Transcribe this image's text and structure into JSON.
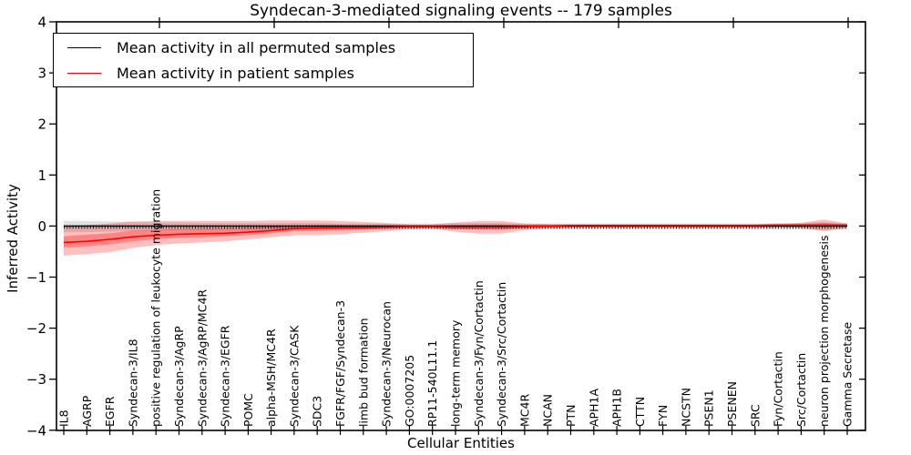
{
  "chart_data": {
    "type": "line",
    "title": "Syndecan-3-mediated signaling events -- 179 samples",
    "xlabel": "Cellular Entities",
    "ylabel": "Inferred Activity",
    "ylim": [
      -4,
      4
    ],
    "yticks": [
      4,
      3,
      2,
      1,
      0,
      -1,
      -2,
      -3,
      -4
    ],
    "ytick_labels": [
      "4",
      "3",
      "2",
      "1",
      "0",
      "−1",
      "−2",
      "−3",
      "−4"
    ],
    "grid": false,
    "legend_position": "upper left",
    "legend": [
      {
        "label": "Mean activity in all permuted samples",
        "color": "#000000"
      },
      {
        "label": "Mean activity in patient samples",
        "color": "#ff0000"
      }
    ],
    "categories": [
      "IL8",
      "AGRP",
      "EGFR",
      "Syndecan-3/IL8",
      "positive regulation of leukocyte migration",
      "Syndecan-3/AgRP",
      "Syndecan-3/AgRP/MC4R",
      "Syndecan-3/EGFR",
      "POMC",
      "alpha-MSH/MC4R",
      "Syndecan-3/CASK",
      "SDC3",
      "FGFR/FGF/Syndecan-3",
      "limb bud formation",
      "Syndecan-3/Neurocan",
      "GO:0007205",
      "RP11-540L11.1",
      "long-term memory",
      "Syndecan-3/Fyn/Cortactin",
      "Syndecan-3/Src/Cortactin",
      "MC4R",
      "NCAN",
      "PTN",
      "APH1A",
      "APH1B",
      "CTTN",
      "FYN",
      "NCSTN",
      "PSEN1",
      "PSENEN",
      "SRC",
      "Fyn/Cortactin",
      "Src/Cortactin",
      "neuron projection morphogenesis",
      "Gamma Secretase"
    ],
    "series": [
      {
        "name": "Mean activity in all permuted samples",
        "color": "#000000",
        "values": [
          0,
          0,
          0,
          0,
          0,
          0,
          0,
          0,
          0,
          0,
          0,
          0,
          0,
          0,
          0,
          0,
          0,
          0,
          0,
          0,
          0,
          0,
          0,
          0,
          0,
          0,
          0,
          0,
          0,
          0,
          0,
          0,
          0,
          0,
          0
        ]
      },
      {
        "name": "Mean activity in patient samples",
        "color": "#ff0000",
        "values": [
          -0.32,
          -0.3,
          -0.26,
          -0.21,
          -0.18,
          -0.16,
          -0.15,
          -0.14,
          -0.12,
          -0.09,
          -0.05,
          -0.04,
          -0.03,
          -0.03,
          -0.02,
          -0.01,
          -0.01,
          -0.02,
          -0.02,
          -0.02,
          -0.01,
          0.0,
          0.01,
          0.01,
          0.01,
          0.01,
          0.01,
          0.01,
          0.01,
          0.01,
          0.01,
          0.02,
          0.02,
          0.02,
          0.02
        ]
      }
    ],
    "bands": [
      {
        "name": "permuted-range",
        "color": "#999999",
        "opacity": 0.3,
        "hi": [
          0.1,
          0.1,
          0.09,
          0.08,
          0.07,
          0.07,
          0.06,
          0.06,
          0.06,
          0.06,
          0.06,
          0.06,
          0.05,
          0.05,
          0.05,
          0.05,
          0.05,
          0.06,
          0.06,
          0.06,
          0.05,
          0.05,
          0.05,
          0.05,
          0.05,
          0.05,
          0.05,
          0.05,
          0.05,
          0.05,
          0.05,
          0.05,
          0.06,
          0.08,
          0.05
        ],
        "lo": [
          -0.12,
          -0.12,
          -0.11,
          -0.1,
          -0.09,
          -0.08,
          -0.08,
          -0.07,
          -0.07,
          -0.07,
          -0.07,
          -0.07,
          -0.06,
          -0.06,
          -0.06,
          -0.06,
          -0.06,
          -0.07,
          -0.07,
          -0.07,
          -0.06,
          -0.06,
          -0.06,
          -0.06,
          -0.06,
          -0.06,
          -0.06,
          -0.06,
          -0.06,
          -0.06,
          -0.06,
          -0.06,
          -0.06,
          -0.09,
          -0.06
        ]
      },
      {
        "name": "patient-range-outer",
        "color": "#ff0000",
        "opacity": 0.25,
        "hi": [
          -0.02,
          0.02,
          0.05,
          0.09,
          0.1,
          0.1,
          0.1,
          0.1,
          0.1,
          0.11,
          0.11,
          0.11,
          0.1,
          0.08,
          0.06,
          0.03,
          0.03,
          0.07,
          0.1,
          0.1,
          0.05,
          0.04,
          0.04,
          0.04,
          0.04,
          0.04,
          0.04,
          0.04,
          0.04,
          0.04,
          0.04,
          0.05,
          0.06,
          0.13,
          0.05
        ],
        "lo": [
          -0.58,
          -0.55,
          -0.51,
          -0.43,
          -0.37,
          -0.34,
          -0.32,
          -0.3,
          -0.26,
          -0.22,
          -0.18,
          -0.18,
          -0.16,
          -0.13,
          -0.1,
          -0.06,
          -0.05,
          -0.11,
          -0.15,
          -0.15,
          -0.08,
          -0.04,
          -0.03,
          -0.03,
          -0.03,
          -0.03,
          -0.03,
          -0.03,
          -0.03,
          -0.03,
          -0.03,
          -0.02,
          -0.03,
          -0.1,
          -0.03
        ]
      },
      {
        "name": "patient-range-inner",
        "color": "#ff0000",
        "opacity": 0.3,
        "hi": [
          -0.2,
          -0.17,
          -0.14,
          -0.09,
          -0.07,
          -0.06,
          -0.05,
          -0.04,
          -0.03,
          -0.01,
          0.01,
          0.02,
          0.02,
          0.01,
          0.01,
          0.01,
          0.01,
          0.02,
          0.03,
          0.03,
          0.01,
          0.02,
          0.02,
          0.02,
          0.02,
          0.02,
          0.02,
          0.02,
          0.02,
          0.02,
          0.02,
          0.03,
          0.04,
          0.06,
          0.03
        ],
        "lo": [
          -0.42,
          -0.4,
          -0.36,
          -0.3,
          -0.26,
          -0.23,
          -0.22,
          -0.2,
          -0.18,
          -0.14,
          -0.1,
          -0.1,
          -0.08,
          -0.07,
          -0.05,
          -0.03,
          -0.03,
          -0.06,
          -0.07,
          -0.07,
          -0.04,
          -0.02,
          -0.01,
          -0.01,
          -0.01,
          -0.01,
          -0.01,
          -0.01,
          -0.01,
          -0.01,
          -0.01,
          0.0,
          0.0,
          -0.03,
          0.0
        ]
      }
    ]
  }
}
